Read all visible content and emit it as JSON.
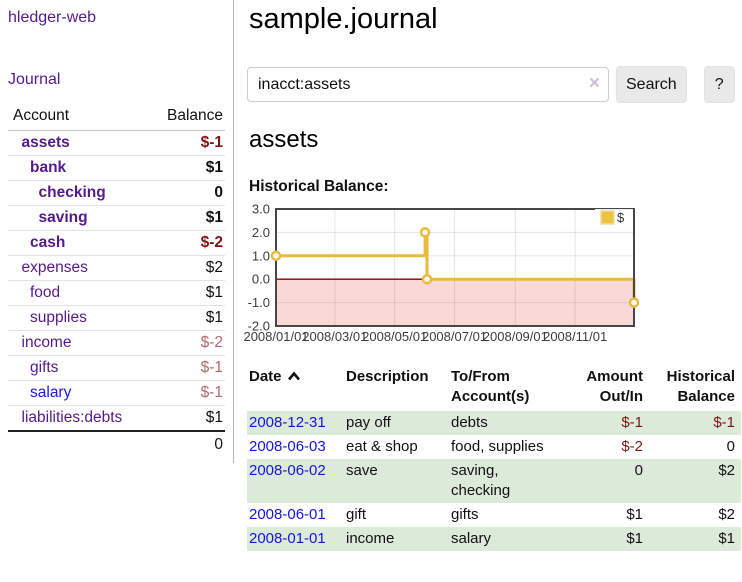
{
  "sidebar": {
    "brand": "hledger-web",
    "nav": {
      "journal": "Journal"
    },
    "accounts_table": {
      "account_header": "Account",
      "balance_header": "Balance"
    },
    "accounts": [
      {
        "name": "assets",
        "indent": 1,
        "bold": true,
        "balance": "$-1",
        "balance_style": "neg"
      },
      {
        "name": "bank",
        "indent": 2,
        "bold": true,
        "balance": "$1",
        "balance_style": "pos"
      },
      {
        "name": "checking",
        "indent": 3,
        "bold": true,
        "balance": "0",
        "balance_style": "pos"
      },
      {
        "name": "saving",
        "indent": 3,
        "bold": true,
        "balance": "$1",
        "balance_style": "pos"
      },
      {
        "name": "cash",
        "indent": 2,
        "bold": true,
        "balance": "$-2",
        "balance_style": "neg"
      },
      {
        "name": "expenses",
        "indent": 1,
        "bold": false,
        "balance": "$2",
        "balance_style": "pos"
      },
      {
        "name": "food",
        "indent": 2,
        "bold": false,
        "balance": "$1",
        "balance_style": "pos"
      },
      {
        "name": "supplies",
        "indent": 2,
        "bold": false,
        "balance": "$1",
        "balance_style": "pos"
      },
      {
        "name": "income",
        "indent": 1,
        "bold": false,
        "balance": "$-2",
        "balance_style": "neg-faded"
      },
      {
        "name": "gifts",
        "indent": 2,
        "bold": false,
        "balance": "$-1",
        "balance_style": "neg-faded"
      },
      {
        "name": "salary",
        "indent": 2,
        "bold": false,
        "link_style": "unvisited",
        "balance": "$-1",
        "balance_style": "neg-faded"
      },
      {
        "name": "liabilities:debts",
        "indent": 1,
        "bold": false,
        "balance": "$1",
        "balance_style": "pos"
      }
    ],
    "total": "0"
  },
  "header": {
    "title": "sample.journal"
  },
  "search": {
    "value": "inacct:assets",
    "clear_icon": "×",
    "search_button": "Search",
    "help_button": "?"
  },
  "account_page": {
    "title": "assets",
    "chart_title": "Historical Balance:"
  },
  "chart_data": {
    "type": "line",
    "style": "step-after",
    "title": "Historical Balance:",
    "series": [
      {
        "name": "$",
        "color": "#e8bb3d",
        "points": [
          [
            "2008-01-01",
            1
          ],
          [
            "2008-06-01",
            2
          ],
          [
            "2008-06-03",
            0
          ],
          [
            "2008-12-31",
            -1
          ]
        ]
      }
    ],
    "xlim": [
      "2008-01-01",
      "2008-12-31"
    ],
    "ylim": [
      -2,
      3
    ],
    "x_ticks": [
      "2008/01/01",
      "2008/03/01",
      "2008/05/01",
      "2008/07/01",
      "2008/09/01",
      "2008/11/01"
    ],
    "x_tick_dates": [
      "2008-01-01",
      "2008-03-01",
      "2008-05-01",
      "2008-07-01",
      "2008-09-01",
      "2008-11-01"
    ],
    "y_ticks": [
      "3.0",
      "2.0",
      "1.0",
      "0.0",
      "-1.0",
      "-2.0"
    ],
    "y_tick_values": [
      3,
      2,
      1,
      0,
      -1,
      -2
    ],
    "grid": true,
    "negative_region_fill": "#fbd8d8",
    "zero_line_color": "#8b0000",
    "legend": {
      "position": "top-right",
      "items": [
        {
          "label": "$",
          "color": "#edc240"
        }
      ]
    }
  },
  "register": {
    "headers": [
      "Date",
      "Description",
      "To/From Account(s)",
      "Amount Out/In",
      "Historical Balance"
    ],
    "rows": [
      {
        "date": "2008-12-31",
        "description": "pay off",
        "accounts": "debts",
        "amount": "$-1",
        "amount_neg": true,
        "balance": "$-1",
        "balance_neg": true
      },
      {
        "date": "2008-06-03",
        "description": "eat & shop",
        "accounts": "food, supplies",
        "amount": "$-2",
        "amount_neg": true,
        "balance": "0",
        "balance_neg": false
      },
      {
        "date": "2008-06-02",
        "description": "save",
        "accounts": "saving, checking",
        "amount": "0",
        "amount_neg": false,
        "balance": "$2",
        "balance_neg": false
      },
      {
        "date": "2008-06-01",
        "description": "gift",
        "accounts": "gifts",
        "amount": "$1",
        "amount_neg": false,
        "balance": "$2",
        "balance_neg": false
      },
      {
        "date": "2008-01-01",
        "description": "income",
        "accounts": "salary",
        "amount": "$1",
        "amount_neg": false,
        "balance": "$1",
        "balance_neg": false
      }
    ]
  },
  "colors": {
    "visited_link_purple": "#551a8b",
    "link_blue": "#1414dd",
    "negative_maroon": "#7f1414",
    "negative_faded_rose": "#b26a6f",
    "row_stripe_green": "#dcead9",
    "chart_line_gold": "#e8bb3d",
    "legend_box_gold": "#edc240",
    "negative_region_pink": "#fbd8d8",
    "zero_line_dark_red": "#8b0000"
  }
}
